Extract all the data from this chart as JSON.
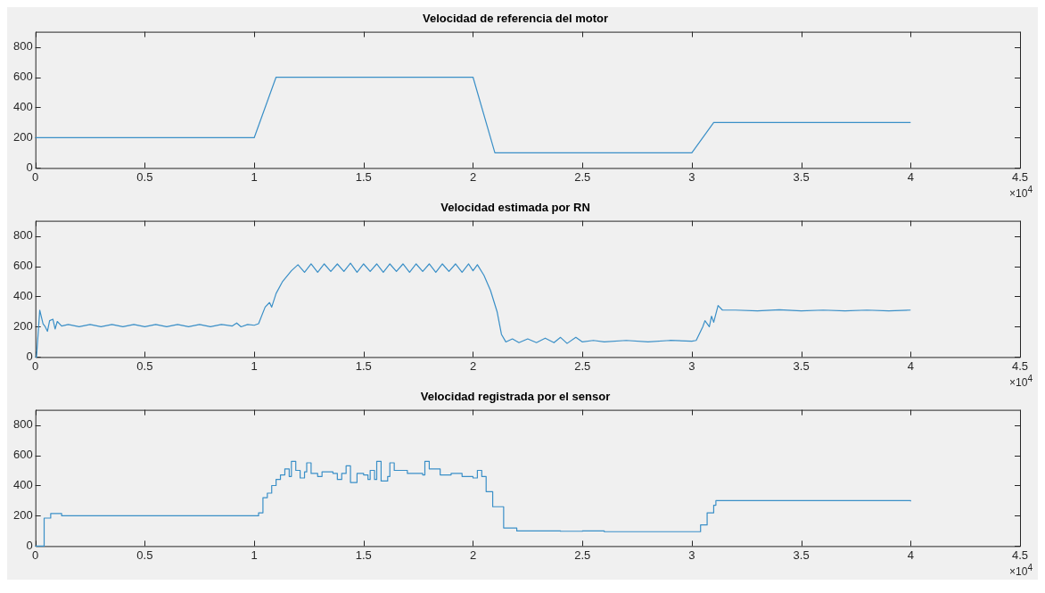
{
  "chart_data": [
    {
      "type": "line",
      "title": "Velocidad de referencia del motor",
      "xlim": [
        0,
        4.5
      ],
      "xticks": [
        0,
        0.5,
        1,
        1.5,
        2,
        2.5,
        3,
        3.5,
        4,
        4.5
      ],
      "ylim": [
        0,
        900
      ],
      "yticks": [
        0,
        200,
        400,
        600,
        800
      ],
      "grid": false,
      "annotations": [
        "×10$^{4}$"
      ],
      "series": [
        {
          "color": "#3a8fc7",
          "x": [
            0,
            1,
            1.1,
            2,
            2.1,
            3,
            3.1,
            4
          ],
          "values": [
            200,
            200,
            600,
            600,
            100,
            100,
            300,
            300
          ]
        }
      ]
    },
    {
      "type": "line",
      "title": "Velocidad estimada por RN",
      "xlim": [
        0,
        4.5
      ],
      "xticks": [
        0,
        0.5,
        1,
        1.5,
        2,
        2.5,
        3,
        3.5,
        4,
        4.5
      ],
      "ylim": [
        0,
        900
      ],
      "yticks": [
        0,
        200,
        400,
        600,
        800
      ],
      "grid": false,
      "annotations": [
        "×10$^{4}$"
      ],
      "series": [
        {
          "color": "#3a8fc7",
          "x": [
            0,
            0.005,
            0.02,
            0.035,
            0.045,
            0.055,
            0.065,
            0.08,
            0.09,
            0.1,
            0.12,
            0.15,
            0.2,
            0.25,
            0.3,
            0.35,
            0.4,
            0.45,
            0.5,
            0.55,
            0.6,
            0.65,
            0.7,
            0.75,
            0.8,
            0.85,
            0.9,
            0.92,
            0.94,
            0.97,
            1.0,
            1.02,
            1.05,
            1.07,
            1.08,
            1.1,
            1.13,
            1.17,
            1.2,
            1.23,
            1.26,
            1.29,
            1.32,
            1.35,
            1.38,
            1.41,
            1.44,
            1.47,
            1.5,
            1.53,
            1.56,
            1.59,
            1.62,
            1.65,
            1.68,
            1.71,
            1.74,
            1.77,
            1.8,
            1.83,
            1.86,
            1.89,
            1.92,
            1.95,
            1.98,
            2.0,
            2.02,
            2.05,
            2.08,
            2.11,
            2.13,
            2.15,
            2.18,
            2.21,
            2.25,
            2.29,
            2.33,
            2.37,
            2.4,
            2.43,
            2.47,
            2.5,
            2.55,
            2.6,
            2.7,
            2.8,
            2.9,
            3.0,
            3.02,
            3.05,
            3.06,
            3.08,
            3.09,
            3.1,
            3.12,
            3.14,
            3.2,
            3.3,
            3.4,
            3.5,
            3.6,
            3.7,
            3.8,
            3.9,
            4.0
          ],
          "values": [
            0,
            0,
            310,
            220,
            200,
            170,
            240,
            250,
            185,
            235,
            205,
            215,
            200,
            215,
            200,
            215,
            200,
            215,
            200,
            215,
            200,
            215,
            200,
            215,
            200,
            215,
            205,
            225,
            200,
            215,
            210,
            220,
            330,
            360,
            330,
            420,
            500,
            570,
            610,
            560,
            615,
            560,
            615,
            565,
            615,
            565,
            620,
            560,
            615,
            565,
            615,
            560,
            615,
            565,
            615,
            560,
            615,
            565,
            615,
            560,
            615,
            565,
            615,
            560,
            615,
            570,
            610,
            540,
            440,
            300,
            150,
            100,
            120,
            95,
            120,
            95,
            125,
            95,
            130,
            90,
            130,
            100,
            110,
            100,
            110,
            100,
            110,
            105,
            110,
            200,
            240,
            200,
            270,
            230,
            340,
            310,
            310,
            305,
            312,
            305,
            310,
            305,
            310,
            305,
            310
          ]
        }
      ]
    },
    {
      "type": "step",
      "title": "Velocidad registrada por el sensor",
      "xlim": [
        0,
        4.5
      ],
      "xticks": [
        0,
        0.5,
        1,
        1.5,
        2,
        2.5,
        3,
        3.5,
        4,
        4.5
      ],
      "ylim": [
        0,
        900
      ],
      "yticks": [
        0,
        200,
        400,
        600,
        800
      ],
      "grid": false,
      "annotations": [
        "×10$^{4}$"
      ],
      "series": [
        {
          "color": "#3a8fc7",
          "x": [
            0,
            0.04,
            0.07,
            0.12,
            1.0,
            1.02,
            1.04,
            1.06,
            1.08,
            1.1,
            1.12,
            1.14,
            1.16,
            1.17,
            1.19,
            1.21,
            1.23,
            1.24,
            1.26,
            1.29,
            1.31,
            1.36,
            1.38,
            1.4,
            1.42,
            1.44,
            1.47,
            1.5,
            1.52,
            1.53,
            1.55,
            1.56,
            1.58,
            1.61,
            1.62,
            1.64,
            1.7,
            1.77,
            1.78,
            1.8,
            1.85,
            1.9,
            1.95,
            2.0,
            2.02,
            2.04,
            2.06,
            2.09,
            2.14,
            2.2,
            2.4,
            2.5,
            2.6,
            3.04,
            3.07,
            3.1,
            3.11,
            4.0
          ],
          "values": [
            0,
            185,
            215,
            200,
            200,
            220,
            320,
            350,
            400,
            440,
            470,
            510,
            460,
            560,
            500,
            450,
            490,
            550,
            480,
            460,
            490,
            480,
            440,
            480,
            530,
            420,
            480,
            470,
            440,
            500,
            440,
            560,
            430,
            460,
            550,
            500,
            480,
            470,
            560,
            510,
            470,
            480,
            460,
            450,
            500,
            460,
            360,
            260,
            120,
            100,
            98,
            100,
            95,
            140,
            220,
            270,
            300,
            295
          ]
        }
      ]
    }
  ]
}
